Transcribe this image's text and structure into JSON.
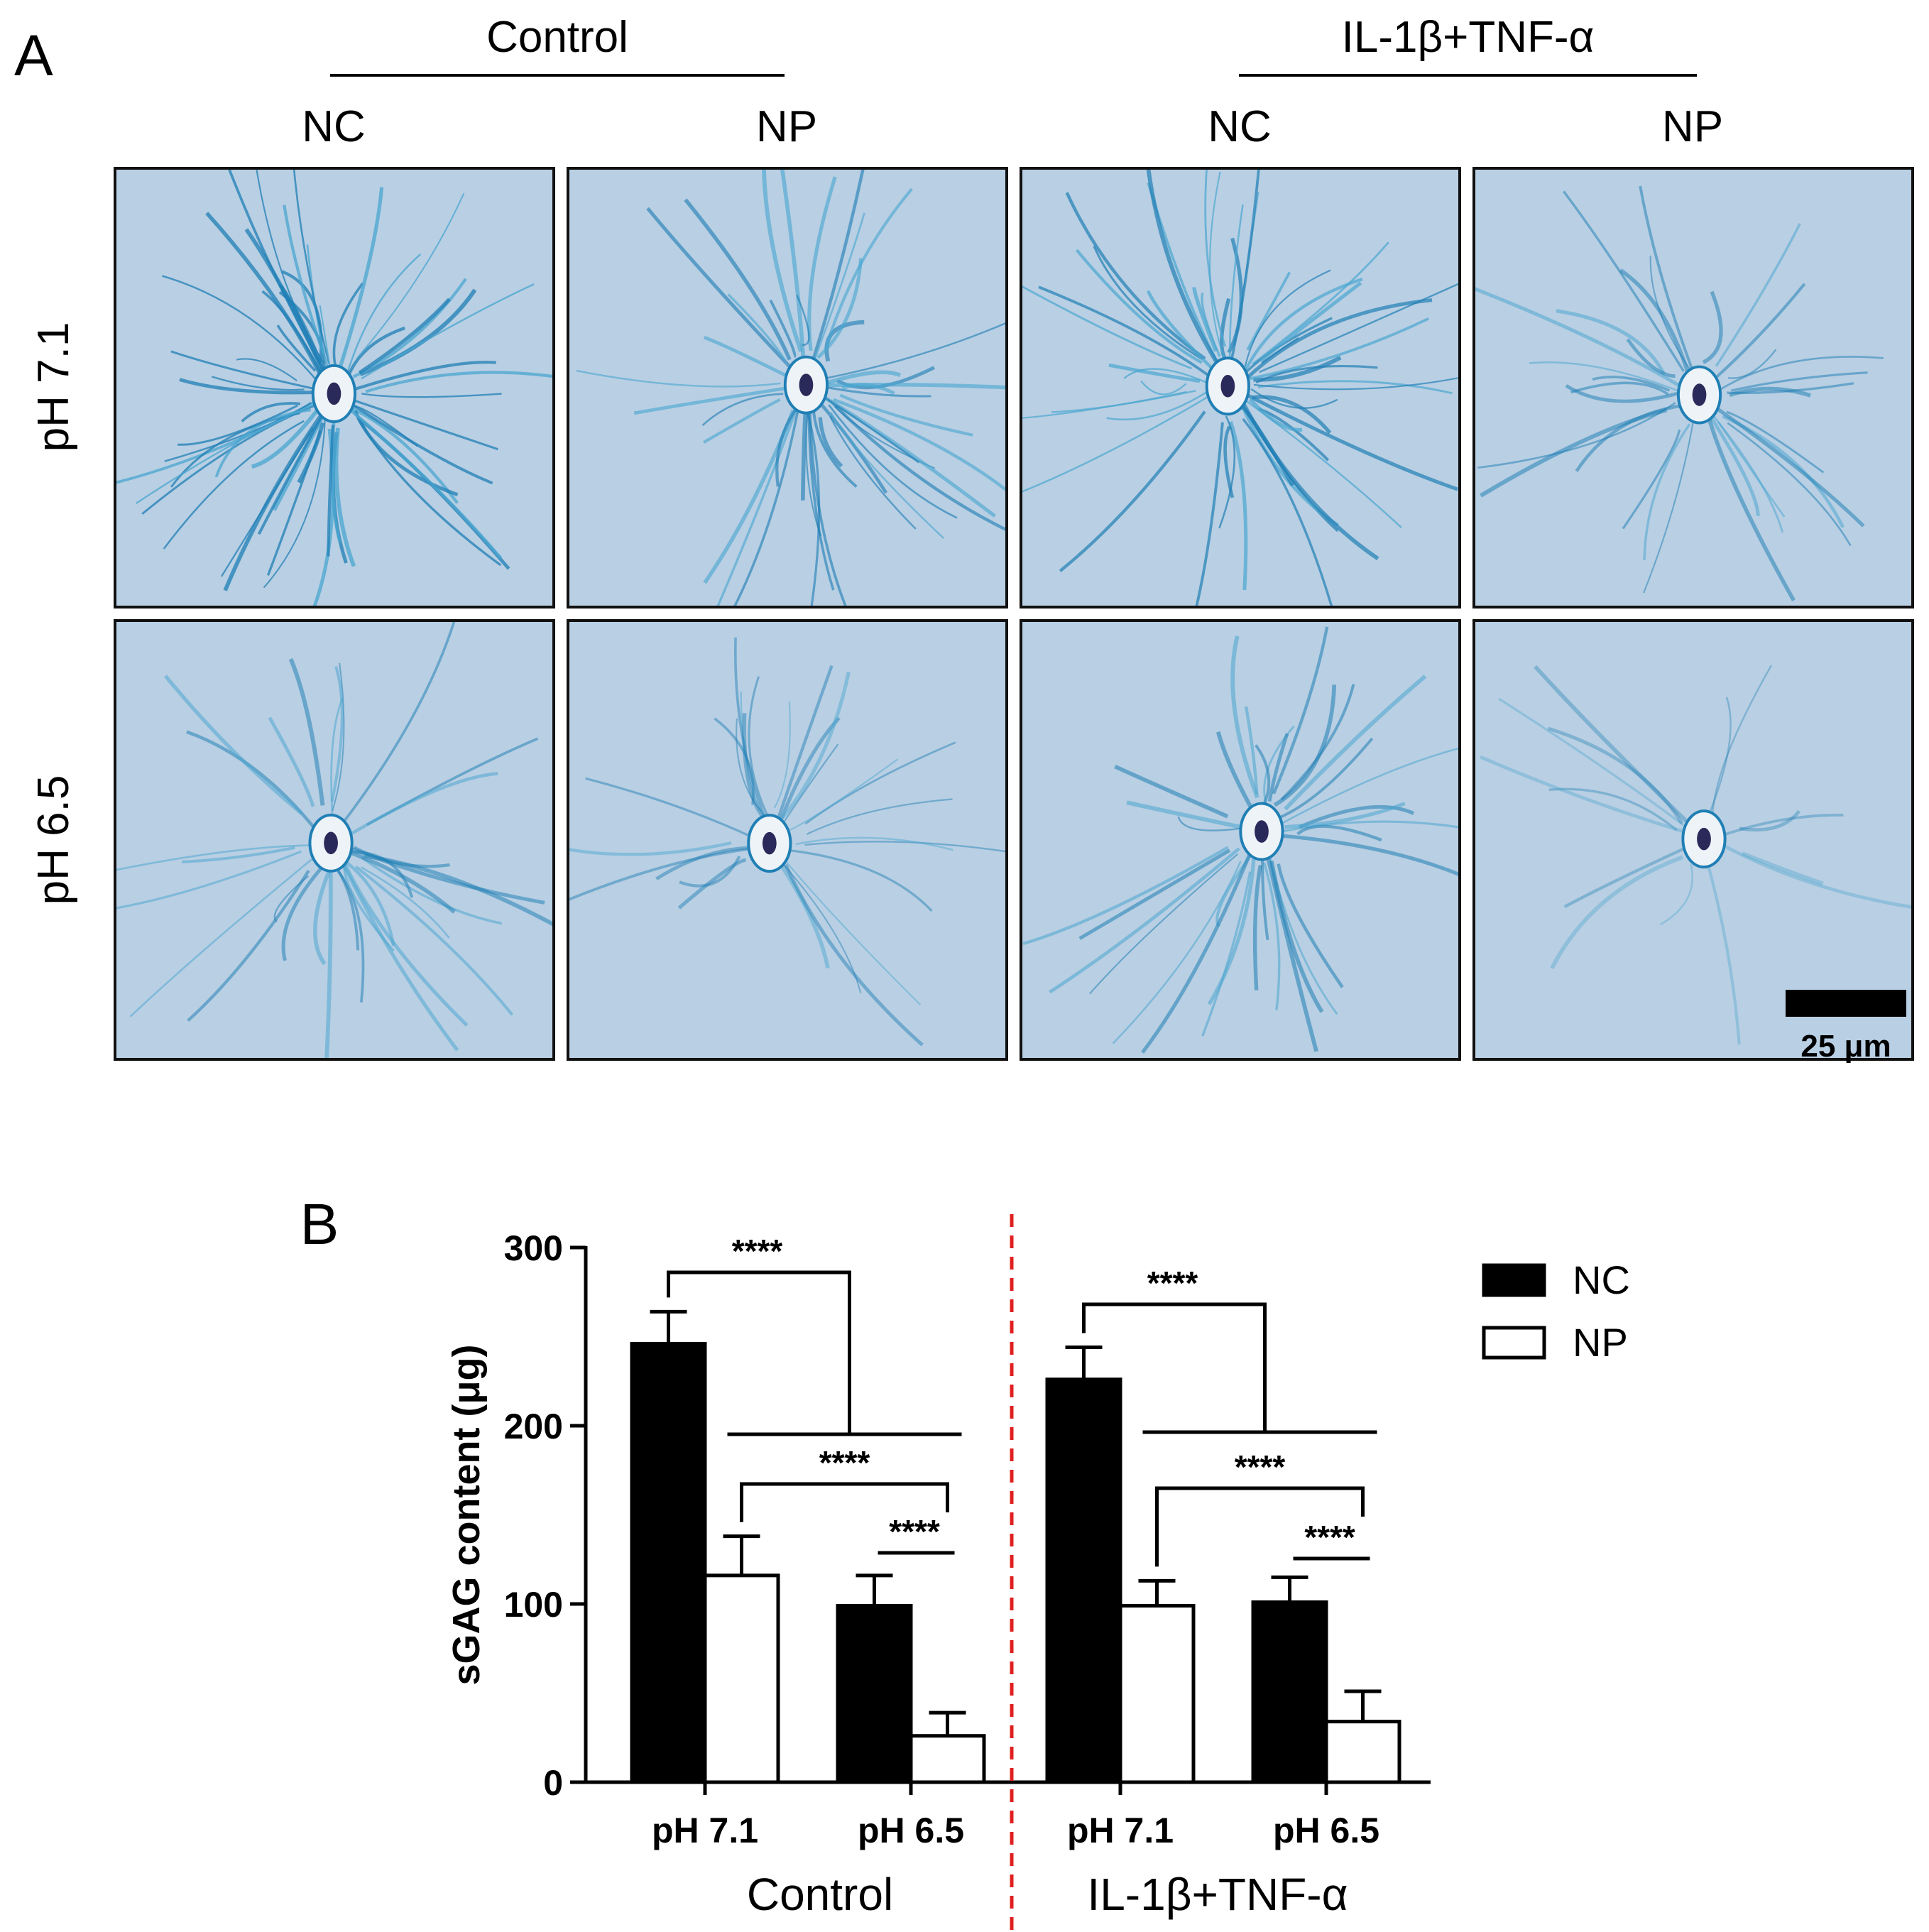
{
  "panel_a": {
    "letter": "A",
    "groups": [
      "Control",
      "IL-1β+TNF-α"
    ],
    "columns": [
      "NC",
      "NP",
      "NC",
      "NP"
    ],
    "rows": [
      "pH 7.1",
      "pH 6.5"
    ],
    "scale_bar": "25 μm",
    "stain_colors": [
      "#b9cfe3",
      "#4aa6d0",
      "#1f7fb5",
      "#2a2a5a"
    ]
  },
  "chart_data": {
    "type": "bar",
    "panel_letter": "B",
    "ylabel": "sGAG content (μg)",
    "ylim": [
      0,
      300
    ],
    "yticks": [
      0,
      100,
      200,
      300
    ],
    "groups": [
      {
        "name": "Control",
        "categories": [
          "pH 7.1",
          "pH 6.5"
        ]
      },
      {
        "name": "IL-1β+TNF-α",
        "categories": [
          "pH 7.1",
          "pH 6.5"
        ]
      }
    ],
    "categories": [
      "pH 7.1",
      "pH 6.5",
      "pH 7.1",
      "pH 6.5"
    ],
    "series": [
      {
        "name": "NC",
        "color": "#000000",
        "values": [
          246,
          99,
          226,
          101
        ],
        "errors": [
          18,
          17,
          18,
          14
        ]
      },
      {
        "name": "NP",
        "color": "#ffffff",
        "values": [
          116,
          26,
          99,
          34
        ],
        "errors": [
          22,
          13,
          14,
          17
        ]
      }
    ],
    "significance": [
      "****",
      "****",
      "****",
      "****",
      "****",
      "****"
    ],
    "divider_color": "#e02020",
    "legend_position": "right"
  }
}
